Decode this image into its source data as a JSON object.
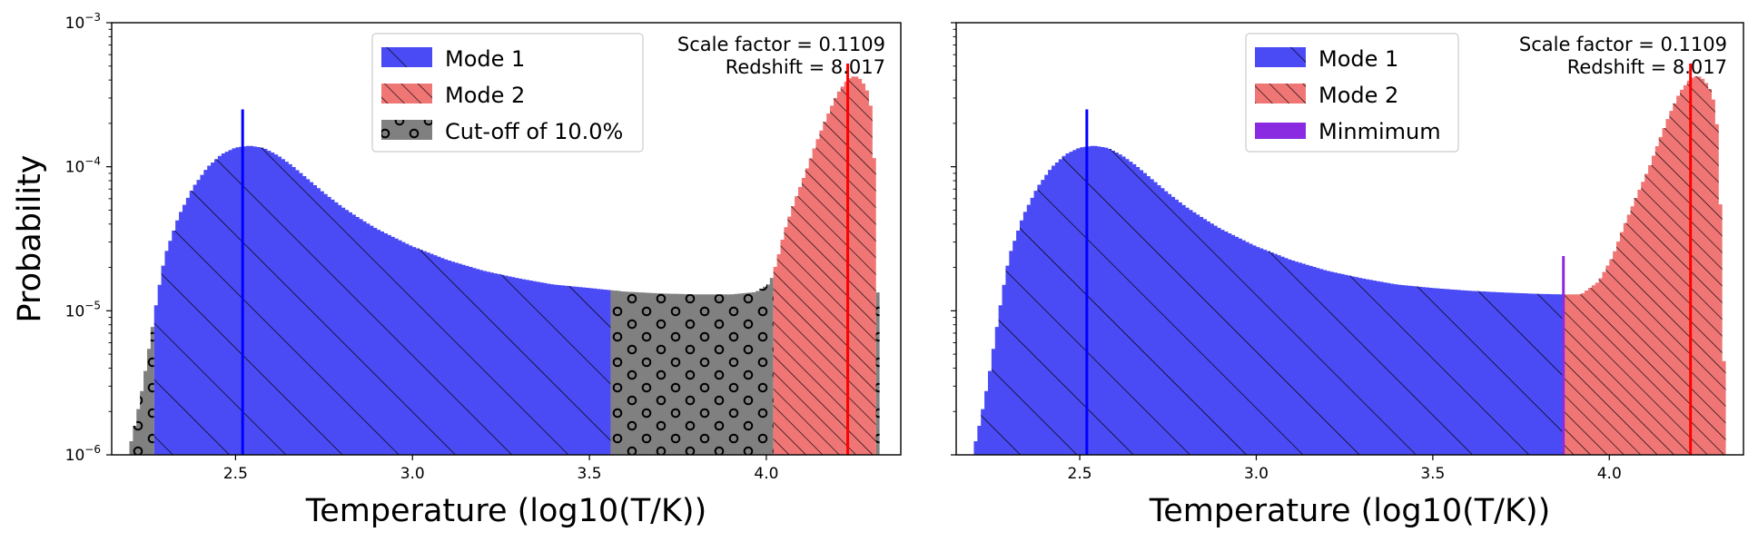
{
  "chart_data": [
    {
      "type": "histogram",
      "panel": "left",
      "xlabel": "Temperature (log10(T/K))",
      "ylabel": "Probability",
      "xlim": [
        2.15,
        4.38
      ],
      "ylim": [
        1e-06,
        0.001
      ],
      "yscale": "log",
      "x_ticks": [
        2.5,
        3.0,
        3.5,
        4.0
      ],
      "x_tick_labels": [
        "2.5",
        "3.0",
        "3.5",
        "4.0"
      ],
      "y_ticks": [
        1e-06,
        1e-05,
        0.0001,
        0.001
      ],
      "y_tick_labels": [
        {
          "base": "10",
          "exp": "−6"
        },
        {
          "base": "10",
          "exp": "−5"
        },
        {
          "base": "10",
          "exp": "−4"
        },
        {
          "base": "10",
          "exp": "−3"
        }
      ],
      "annotation": [
        "Scale factor = 0.1109",
        "Redshift = 8.017"
      ],
      "legend_position": "top-center",
      "legend": [
        {
          "label": "Mode 1",
          "color": "#4b4bf5",
          "hatch": "diagonal"
        },
        {
          "label": "Mode 2",
          "color": "#f07676",
          "hatch": "diagonal-dense"
        },
        {
          "label": "Cut-off of 10.0%",
          "color": "#808080",
          "hatch": "circles"
        }
      ],
      "grid": false,
      "regions": [
        {
          "name": "Cut-off of 10.0%",
          "x_range": [
            2.2,
            2.27
          ],
          "color": "#808080",
          "hatch": "circles"
        },
        {
          "name": "Mode 1",
          "x_range": [
            2.27,
            3.56
          ],
          "color": "#4b4bf5",
          "hatch": "diagonal"
        },
        {
          "name": "Cut-off of 10.0%",
          "x_range": [
            3.56,
            4.02
          ],
          "color": "#808080",
          "hatch": "circles"
        },
        {
          "name": "Mode 2",
          "x_range": [
            4.02,
            4.31
          ],
          "color": "#f07676",
          "hatch": "diagonal-dense"
        },
        {
          "name": "Cut-off of 10.0%",
          "x_range": [
            4.31,
            4.33
          ],
          "color": "#808080",
          "hatch": "circles"
        }
      ],
      "mode_lines": [
        {
          "x": 2.52,
          "y_top": 0.00025,
          "color": "#0000ff"
        },
        {
          "x": 4.23,
          "y_top": 0.00052,
          "color": "#ff0000"
        }
      ],
      "distribution_points": [
        [
          2.2,
          1.1e-06
        ],
        [
          2.22,
          1.8e-06
        ],
        [
          2.24,
          3.2e-06
        ],
        [
          2.26,
          6.5e-06
        ],
        [
          2.28,
          1.3e-05
        ],
        [
          2.3,
          2.4e-05
        ],
        [
          2.34,
          4.6e-05
        ],
        [
          2.38,
          7.2e-05
        ],
        [
          2.42,
          9.9e-05
        ],
        [
          2.46,
          0.000122
        ],
        [
          2.5,
          0.000136
        ],
        [
          2.54,
          0.00014
        ],
        [
          2.58,
          0.000135
        ],
        [
          2.62,
          0.00012
        ],
        [
          2.66,
          0.000102
        ],
        [
          2.7,
          8.4e-05
        ],
        [
          2.75,
          6.6e-05
        ],
        [
          2.8,
          5.3e-05
        ],
        [
          2.85,
          4.4e-05
        ],
        [
          2.9,
          3.7e-05
        ],
        [
          3.0,
          2.8e-05
        ],
        [
          3.1,
          2.25e-05
        ],
        [
          3.2,
          1.9e-05
        ],
        [
          3.3,
          1.68e-05
        ],
        [
          3.4,
          1.52e-05
        ],
        [
          3.5,
          1.44e-05
        ],
        [
          3.6,
          1.36e-05
        ],
        [
          3.7,
          1.32e-05
        ],
        [
          3.8,
          1.3e-05
        ],
        [
          3.9,
          1.3e-05
        ],
        [
          3.97,
          1.35e-05
        ],
        [
          4.01,
          1.55e-05
        ],
        [
          4.03,
          2.2e-05
        ],
        [
          4.05,
          3.5e-05
        ],
        [
          4.08,
          5.8e-05
        ],
        [
          4.11,
          9e-05
        ],
        [
          4.14,
          0.000145
        ],
        [
          4.17,
          0.00022
        ],
        [
          4.2,
          0.00032
        ],
        [
          4.23,
          0.000405
        ],
        [
          4.25,
          0.00043
        ],
        [
          4.27,
          0.0004
        ],
        [
          4.29,
          0.00032
        ],
        [
          4.3,
          0.00022
        ],
        [
          4.31,
          6e-05
        ],
        [
          4.32,
          3e-06
        ],
        [
          4.325,
          1e-06
        ]
      ]
    },
    {
      "type": "histogram",
      "panel": "right",
      "xlabel": "Temperature (log10(T/K))",
      "ylabel": "",
      "xlim": [
        2.15,
        4.38
      ],
      "ylim": [
        1e-06,
        0.001
      ],
      "yscale": "log",
      "x_ticks": [
        2.5,
        3.0,
        3.5,
        4.0
      ],
      "x_tick_labels": [
        "2.5",
        "3.0",
        "3.5",
        "4.0"
      ],
      "y_ticks": [
        1e-06,
        1e-05,
        0.0001,
        0.001
      ],
      "y_tick_labels": [],
      "annotation": [
        "Scale factor = 0.1109",
        "Redshift = 8.017"
      ],
      "legend_position": "top-center",
      "legend": [
        {
          "label": "Mode 1",
          "color": "#4b4bf5",
          "hatch": "diagonal"
        },
        {
          "label": "Mode 2",
          "color": "#f07676",
          "hatch": "diagonal-dense"
        },
        {
          "label": "Minmimum",
          "color": "#8a2be2",
          "hatch": "none"
        }
      ],
      "grid": false,
      "regions": [
        {
          "name": "Mode 1",
          "x_range": [
            2.2,
            3.87
          ],
          "color": "#4b4bf5",
          "hatch": "diagonal"
        },
        {
          "name": "Mode 2",
          "x_range": [
            3.87,
            4.33
          ],
          "color": "#f07676",
          "hatch": "diagonal-dense"
        }
      ],
      "mode_lines": [
        {
          "x": 2.52,
          "y_top": 0.00025,
          "color": "#0000ff"
        },
        {
          "x": 4.23,
          "y_top": 0.00052,
          "color": "#ff0000"
        },
        {
          "x": 3.87,
          "y_top": 2.4e-05,
          "color": "#8a2be2"
        }
      ],
      "distribution_points": [
        [
          2.2,
          1.1e-06
        ],
        [
          2.22,
          1.8e-06
        ],
        [
          2.24,
          3.2e-06
        ],
        [
          2.26,
          6.5e-06
        ],
        [
          2.28,
          1.3e-05
        ],
        [
          2.3,
          2.4e-05
        ],
        [
          2.34,
          4.6e-05
        ],
        [
          2.38,
          7.2e-05
        ],
        [
          2.42,
          9.9e-05
        ],
        [
          2.46,
          0.000122
        ],
        [
          2.5,
          0.000136
        ],
        [
          2.54,
          0.00014
        ],
        [
          2.58,
          0.000135
        ],
        [
          2.62,
          0.00012
        ],
        [
          2.66,
          0.000102
        ],
        [
          2.7,
          8.4e-05
        ],
        [
          2.75,
          6.6e-05
        ],
        [
          2.8,
          5.3e-05
        ],
        [
          2.85,
          4.4e-05
        ],
        [
          2.9,
          3.7e-05
        ],
        [
          3.0,
          2.8e-05
        ],
        [
          3.1,
          2.25e-05
        ],
        [
          3.2,
          1.9e-05
        ],
        [
          3.3,
          1.68e-05
        ],
        [
          3.4,
          1.52e-05
        ],
        [
          3.5,
          1.44e-05
        ],
        [
          3.6,
          1.38e-05
        ],
        [
          3.7,
          1.34e-05
        ],
        [
          3.8,
          1.31e-05
        ],
        [
          3.87,
          1.3e-05
        ],
        [
          3.92,
          1.3e-05
        ],
        [
          3.97,
          1.6e-05
        ],
        [
          4.01,
          2.4e-05
        ],
        [
          4.04,
          3.8e-05
        ],
        [
          4.08,
          6.5e-05
        ],
        [
          4.11,
          9.5e-05
        ],
        [
          4.14,
          0.00015
        ],
        [
          4.17,
          0.00023
        ],
        [
          4.2,
          0.00033
        ],
        [
          4.23,
          0.00041
        ],
        [
          4.25,
          0.00043
        ],
        [
          4.27,
          0.0004
        ],
        [
          4.29,
          0.00033
        ],
        [
          4.3,
          0.00026
        ],
        [
          4.31,
          0.00015
        ],
        [
          4.32,
          2e-05
        ],
        [
          4.33,
          1e-06
        ]
      ]
    }
  ]
}
